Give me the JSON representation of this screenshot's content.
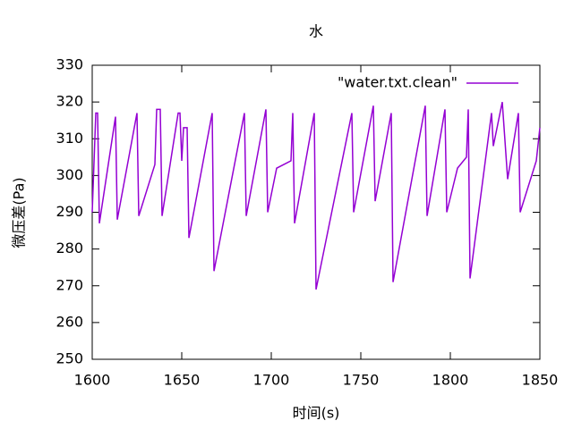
{
  "chart_data": {
    "type": "line",
    "title": "水",
    "xlabel": "时间(s)",
    "ylabel": "微压差(Pa)",
    "x": [
      1600,
      1602,
      1603,
      1604,
      1613,
      1614,
      1625,
      1626,
      1635,
      1636,
      1638,
      1639,
      1648,
      1649,
      1650,
      1651,
      1653,
      1654,
      1667,
      1668,
      1685,
      1686,
      1697,
      1698,
      1703,
      1711,
      1712,
      1713,
      1724,
      1725,
      1745,
      1746,
      1757,
      1758,
      1767,
      1768,
      1786,
      1787,
      1797,
      1798,
      1804,
      1809,
      1810,
      1811,
      1823,
      1824,
      1829,
      1832,
      1838,
      1839,
      1848,
      1850
    ],
    "series": [
      {
        "name": "\"water.txt.clean\"",
        "color": "#9400d3",
        "values": [
          290,
          317,
          317,
          287,
          316,
          288,
          317,
          289,
          303,
          318,
          318,
          289,
          317,
          317,
          304,
          313,
          313,
          283,
          317,
          274,
          317,
          289,
          318,
          290,
          302,
          304,
          317,
          287,
          317,
          269,
          317,
          290,
          319,
          293,
          317,
          271,
          319,
          289,
          318,
          290,
          302,
          305,
          318,
          272,
          317,
          308,
          320,
          299,
          317,
          290,
          304,
          313
        ]
      }
    ],
    "xlim": [
      1600,
      1850
    ],
    "xticks": [
      1600,
      1650,
      1700,
      1750,
      1800,
      1850
    ],
    "ylim": [
      250,
      330
    ],
    "yticks": [
      250,
      260,
      270,
      280,
      290,
      300,
      310,
      320,
      330
    ],
    "legend": "top-right"
  }
}
